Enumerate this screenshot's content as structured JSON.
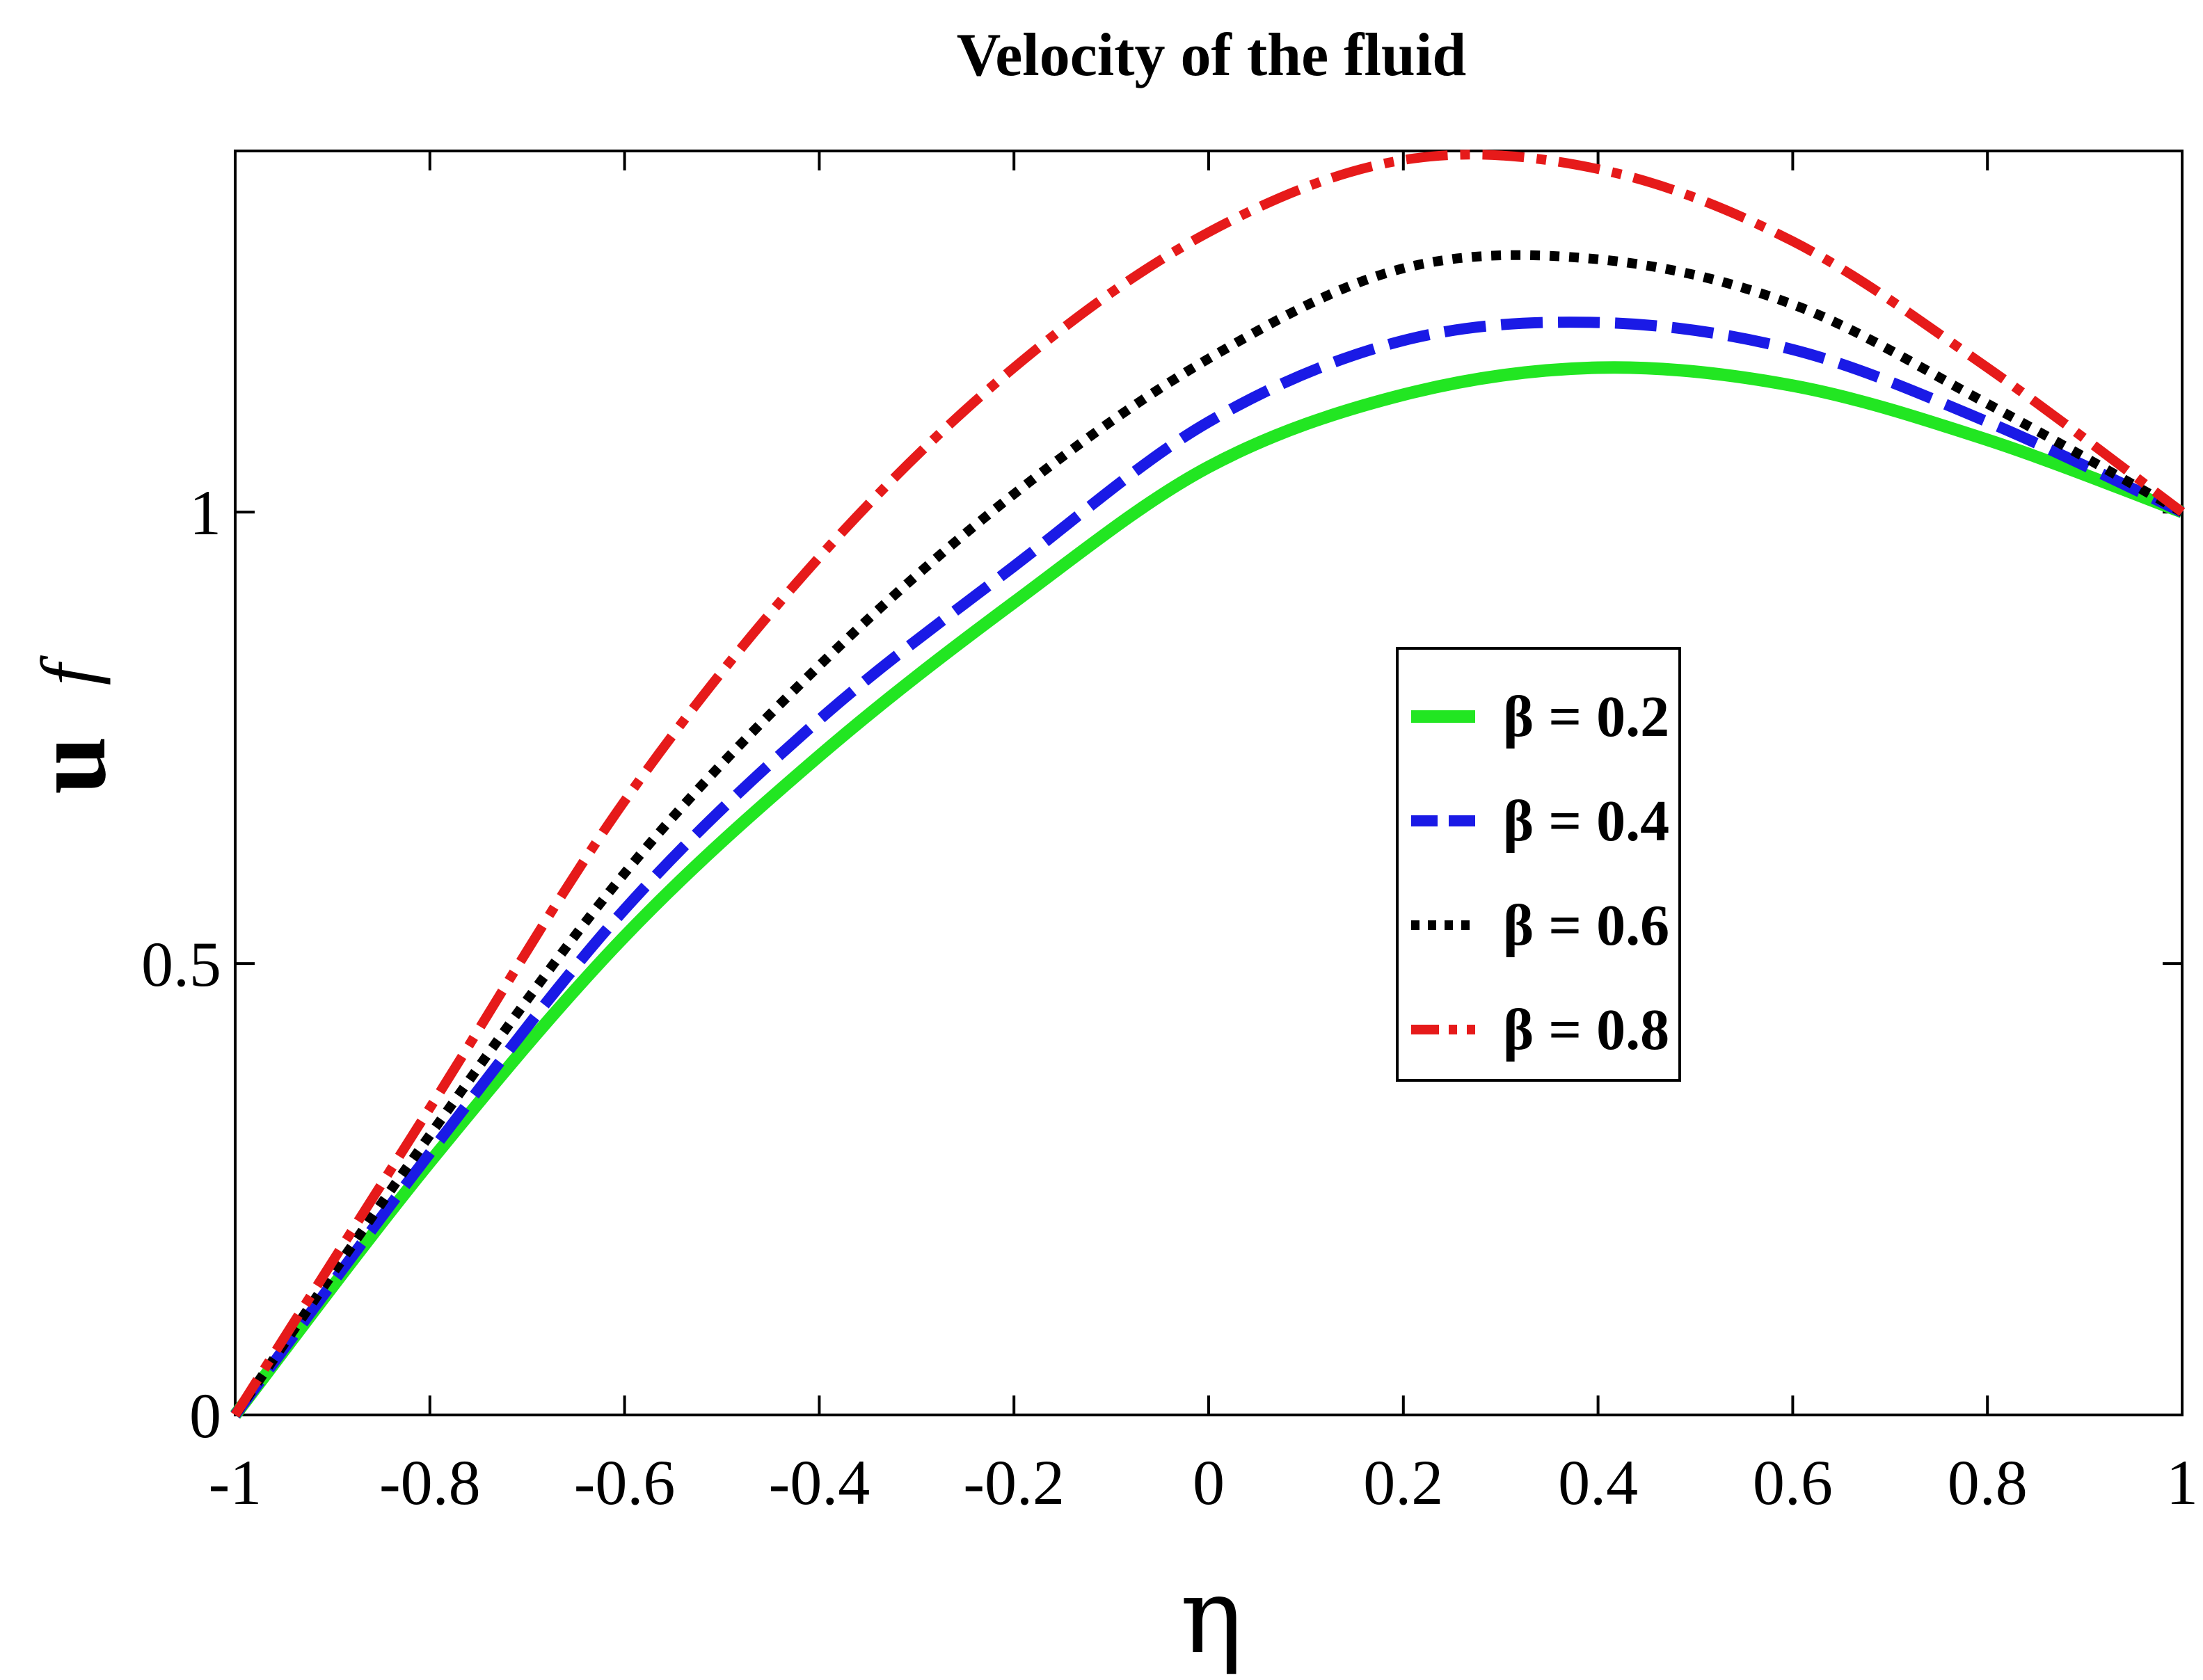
{
  "chart_data": {
    "type": "line",
    "title": "Velocity of the fluid",
    "xlabel": "η",
    "ylabel": "u",
    "ylabel_sub": "f",
    "xlim": [
      -1,
      1
    ],
    "ylim": [
      0,
      1.4
    ],
    "xticks": [
      -1,
      -0.8,
      -0.6,
      -0.4,
      -0.2,
      0,
      0.2,
      0.4,
      0.6,
      0.8,
      1
    ],
    "xtick_labels": [
      "-1",
      "-0.8",
      "-0.6",
      "-0.4",
      "-0.2",
      "0",
      "0.2",
      "0.4",
      "0.6",
      "0.8",
      "1"
    ],
    "yticks": [
      0,
      0.5,
      1
    ],
    "ytick_labels": [
      "0",
      "0.5",
      "1"
    ],
    "grid": false,
    "legend_position": "center-right",
    "x": [
      -1,
      -0.8,
      -0.6,
      -0.4,
      -0.2,
      0,
      0.2,
      0.4,
      0.6,
      0.8,
      1
    ],
    "series": [
      {
        "name": "β = 0.2",
        "color": "#22e622",
        "style": "solid",
        "values": [
          0,
          0.28,
          0.53,
          0.73,
          0.9,
          1.05,
          1.13,
          1.16,
          1.14,
          1.08,
          1.0
        ]
      },
      {
        "name": "β = 0.4",
        "color": "#1a1ae6",
        "style": "dashed",
        "values": [
          0,
          0.29,
          0.56,
          0.77,
          0.94,
          1.1,
          1.19,
          1.21,
          1.18,
          1.1,
          1.0
        ]
      },
      {
        "name": "β = 0.6",
        "color": "#000000",
        "style": "dotted",
        "values": [
          0,
          0.31,
          0.6,
          0.83,
          1.02,
          1.17,
          1.27,
          1.28,
          1.23,
          1.12,
          1.0
        ]
      },
      {
        "name": "β = 0.8",
        "color": "#e61a1a",
        "style": "dashdot",
        "values": [
          0,
          0.34,
          0.68,
          0.95,
          1.16,
          1.31,
          1.39,
          1.38,
          1.3,
          1.16,
          1.0
        ]
      }
    ]
  }
}
